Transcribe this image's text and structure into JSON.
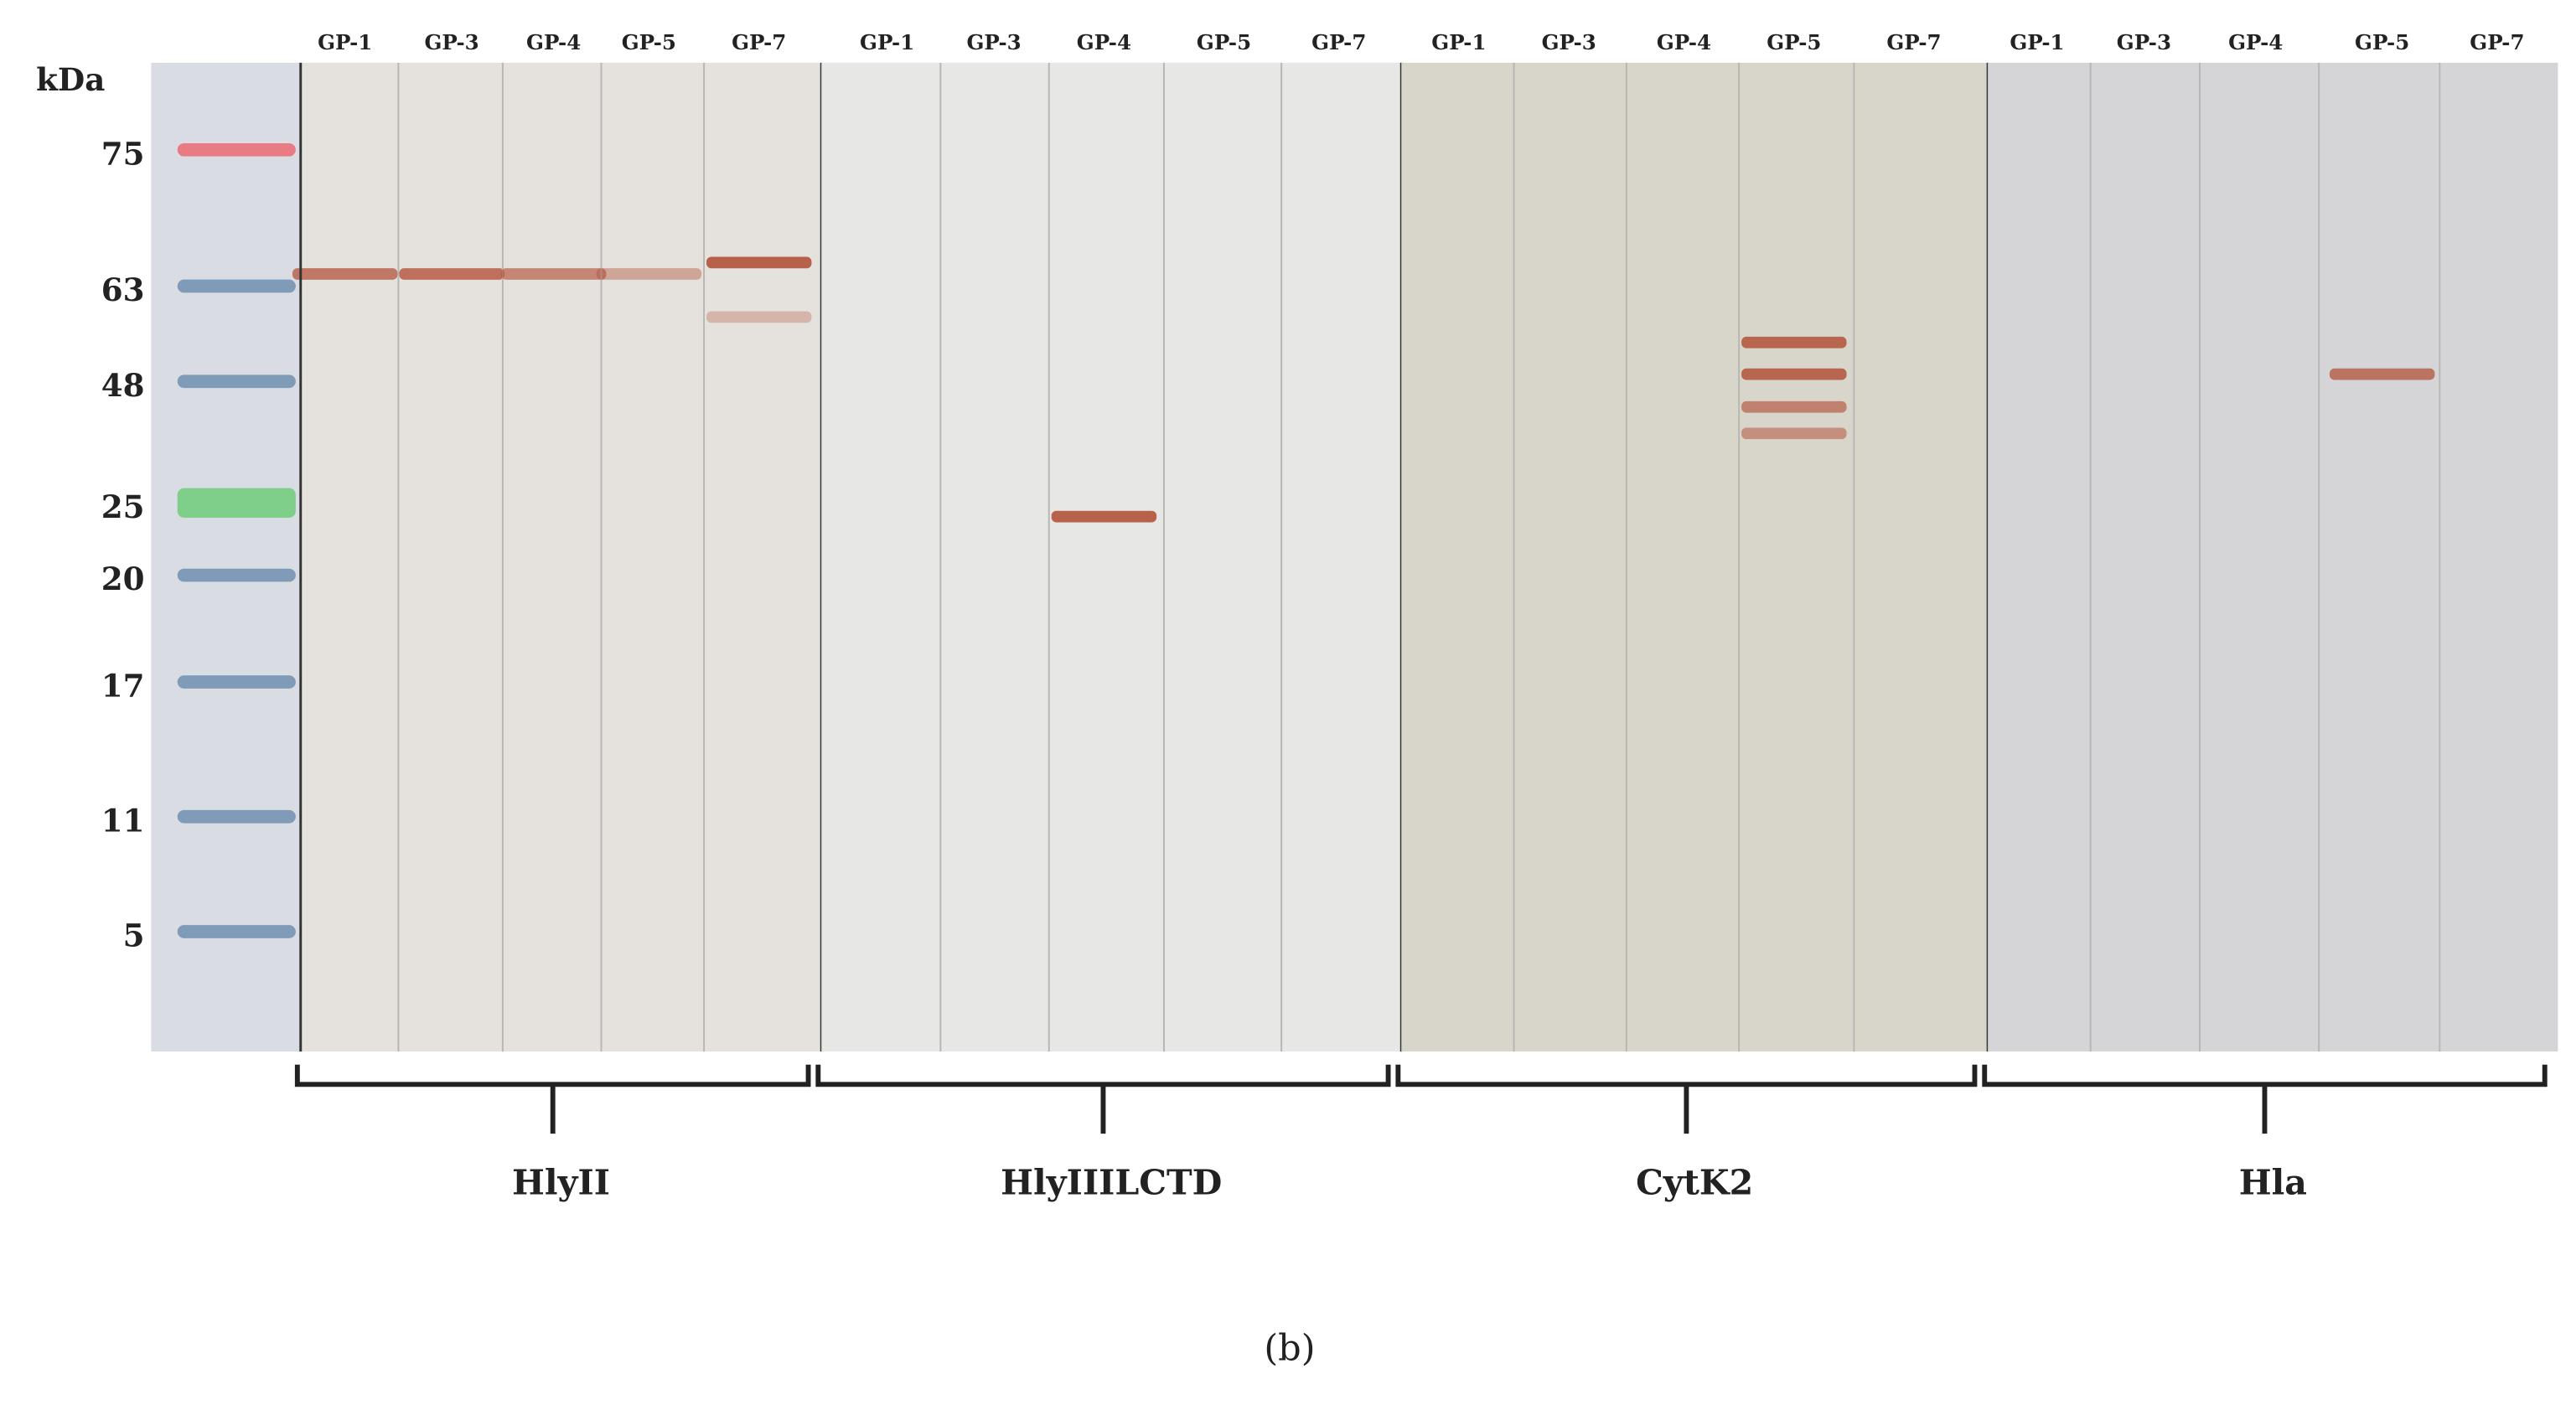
{
  "figure_label": "(b)",
  "axis_unit": "kDa",
  "marker": {
    "ladder": [
      {
        "kDa": "75",
        "color": "#e87b84"
      },
      {
        "kDa": "63",
        "color": "#7f9bb8"
      },
      {
        "kDa": "48",
        "color": "#7f9bb8"
      },
      {
        "kDa": "25",
        "color": "#7fcf8a"
      },
      {
        "kDa": "20",
        "color": "#7f9bb8"
      },
      {
        "kDa": "17",
        "color": "#7f9bb8"
      },
      {
        "kDa": "11",
        "color": "#7f9bb8"
      },
      {
        "kDa": "5",
        "color": "#7f9bb8"
      }
    ]
  },
  "panels": [
    {
      "name": "HlyII",
      "background": "#e5e2de",
      "lanes": [
        {
          "label": "GP-1",
          "bands_kDa": [
            64
          ],
          "intensity": [
            0.7
          ]
        },
        {
          "label": "GP-3",
          "bands_kDa": [
            64
          ],
          "intensity": [
            0.75
          ]
        },
        {
          "label": "GP-4",
          "bands_kDa": [
            64
          ],
          "intensity": [
            0.6
          ]
        },
        {
          "label": "GP-5",
          "bands_kDa": [
            64
          ],
          "intensity": [
            0.4
          ]
        },
        {
          "label": "GP-7",
          "bands_kDa": [
            65,
            58
          ],
          "intensity": [
            0.85,
            0.3
          ]
        }
      ]
    },
    {
      "name": "HlyIIILCTD",
      "background": "#e7e7e5",
      "lanes": [
        {
          "label": "GP-1",
          "bands_kDa": [],
          "intensity": []
        },
        {
          "label": "GP-3",
          "bands_kDa": [],
          "intensity": []
        },
        {
          "label": "GP-4",
          "bands_kDa": [
            24
          ],
          "intensity": [
            0.85
          ]
        },
        {
          "label": "GP-5",
          "bands_kDa": [],
          "intensity": []
        },
        {
          "label": "GP-7",
          "bands_kDa": [],
          "intensity": []
        }
      ]
    },
    {
      "name": "CytK2",
      "background": "#d8d5cb",
      "lanes": [
        {
          "label": "GP-1",
          "bands_kDa": [],
          "intensity": []
        },
        {
          "label": "GP-3",
          "bands_kDa": [],
          "intensity": []
        },
        {
          "label": "GP-4",
          "bands_kDa": [],
          "intensity": []
        },
        {
          "label": "GP-5",
          "bands_kDa": [
            54,
            49,
            43,
            38
          ],
          "intensity": [
            0.8,
            0.8,
            0.6,
            0.5
          ]
        },
        {
          "label": "GP-7",
          "bands_kDa": [],
          "intensity": []
        }
      ]
    },
    {
      "name": "Hla",
      "background": "#d5d5d8",
      "lanes": [
        {
          "label": "GP-1",
          "bands_kDa": [],
          "intensity": []
        },
        {
          "label": "GP-3",
          "bands_kDa": [],
          "intensity": []
        },
        {
          "label": "GP-4",
          "bands_kDa": [],
          "intensity": []
        },
        {
          "label": "GP-5",
          "bands_kDa": [
            49
          ],
          "intensity": [
            0.7
          ]
        },
        {
          "label": "GP-7",
          "bands_kDa": [],
          "intensity": []
        }
      ]
    }
  ],
  "band_color": "#b04a30"
}
